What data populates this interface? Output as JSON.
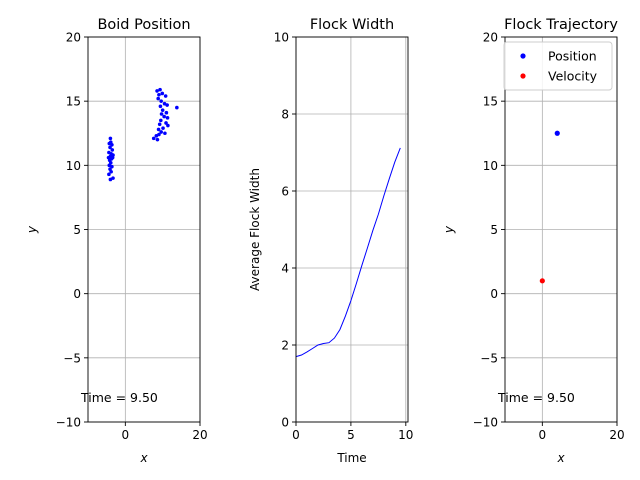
{
  "chart_data": [
    {
      "type": "scatter",
      "title": "Boid Position",
      "xlabel": "x",
      "ylabel": "y",
      "xlim": [
        -10,
        20
      ],
      "ylim": [
        -10,
        20
      ],
      "xticks": [
        0,
        20
      ],
      "xtick_labels": [
        "0",
        "20"
      ],
      "yticks": [
        -10,
        -5,
        0,
        5,
        10,
        15,
        20
      ],
      "ytick_labels": [
        "−10",
        "−5",
        "0",
        "5",
        "10",
        "15",
        "20"
      ],
      "grid": true,
      "annotation": "Time = 9.50",
      "color": "#0000ff",
      "series": [
        {
          "points": [
            [
              -4.0,
              12.1
            ],
            [
              -3.9,
              11.8
            ],
            [
              -4.3,
              11.7
            ],
            [
              -3.6,
              11.6
            ],
            [
              -4.1,
              11.4
            ],
            [
              -3.5,
              11.2
            ],
            [
              -4.4,
              11.0
            ],
            [
              -3.8,
              10.9
            ],
            [
              -3.3,
              10.8
            ],
            [
              -4.0,
              10.7
            ],
            [
              -4.5,
              10.6
            ],
            [
              -3.7,
              10.5
            ],
            [
              -4.2,
              10.4
            ],
            [
              -3.4,
              10.6
            ],
            [
              -3.9,
              10.2
            ],
            [
              -4.3,
              10.0
            ],
            [
              -3.6,
              9.9
            ],
            [
              -4.1,
              9.7
            ],
            [
              -3.8,
              9.5
            ],
            [
              -4.4,
              9.3
            ],
            [
              -3.3,
              9.0
            ],
            [
              -4.0,
              8.9
            ],
            [
              8.5,
              15.8
            ],
            [
              9.3,
              15.9
            ],
            [
              9.9,
              15.6
            ],
            [
              9.0,
              15.5
            ],
            [
              10.8,
              15.4
            ],
            [
              8.8,
              15.2
            ],
            [
              9.6,
              15.0
            ],
            [
              10.5,
              14.8
            ],
            [
              11.2,
              14.7
            ],
            [
              9.4,
              14.6
            ],
            [
              13.8,
              14.5
            ],
            [
              10.0,
              14.3
            ],
            [
              11.0,
              14.1
            ],
            [
              9.7,
              14.0
            ],
            [
              10.4,
              13.8
            ],
            [
              11.3,
              13.7
            ],
            [
              9.5,
              13.5
            ],
            [
              10.9,
              13.3
            ],
            [
              11.4,
              13.1
            ],
            [
              9.2,
              13.2
            ],
            [
              10.1,
              12.9
            ],
            [
              8.9,
              12.8
            ],
            [
              9.6,
              12.6
            ],
            [
              10.6,
              12.5
            ],
            [
              9.0,
              12.4
            ],
            [
              8.3,
              12.3
            ],
            [
              7.6,
              12.1
            ],
            [
              8.6,
              12.0
            ]
          ]
        }
      ]
    },
    {
      "type": "line",
      "title": "Flock Width",
      "xlabel": "Time",
      "ylabel": "Average Flock Width",
      "xlim": [
        0,
        10.2
      ],
      "ylim": [
        0,
        10
      ],
      "xticks": [
        0,
        5,
        10
      ],
      "xtick_labels": [
        "0",
        "5",
        "10"
      ],
      "yticks": [
        0,
        2,
        4,
        6,
        8,
        10
      ],
      "ytick_labels": [
        "0",
        "2",
        "4",
        "6",
        "8",
        "10"
      ],
      "grid": true,
      "color": "#0000ff",
      "x": [
        0,
        0.5,
        1.0,
        1.5,
        2.0,
        2.5,
        3.0,
        3.5,
        4.0,
        4.5,
        5.0,
        5.5,
        6.0,
        6.5,
        7.0,
        7.5,
        8.0,
        8.5,
        9.0,
        9.5
      ],
      "series": [
        {
          "values": [
            1.7,
            1.74,
            1.82,
            1.91,
            2.0,
            2.04,
            2.06,
            2.18,
            2.4,
            2.75,
            3.15,
            3.6,
            4.07,
            4.52,
            4.98,
            5.4,
            5.87,
            6.32,
            6.75,
            7.12
          ]
        }
      ]
    },
    {
      "type": "scatter",
      "title": "Flock Trajectory",
      "xlabel": "x",
      "ylabel": "y",
      "xlim": [
        -10,
        20
      ],
      "ylim": [
        -10,
        20
      ],
      "xticks": [
        0,
        20
      ],
      "xtick_labels": [
        "0",
        "20"
      ],
      "yticks": [
        -10,
        -5,
        0,
        5,
        10,
        15,
        20
      ],
      "ytick_labels": [
        "−10",
        "−5",
        "0",
        "5",
        "10",
        "15",
        "20"
      ],
      "grid": true,
      "annotation": "Time = 9.50",
      "legend_position": "top-right",
      "series": [
        {
          "name": "Position",
          "color": "#0000ff",
          "points": [
            [
              4.0,
              12.5
            ]
          ]
        },
        {
          "name": "Velocity",
          "color": "#ff0000",
          "points": [
            [
              0.0,
              1.0
            ]
          ]
        }
      ]
    }
  ]
}
